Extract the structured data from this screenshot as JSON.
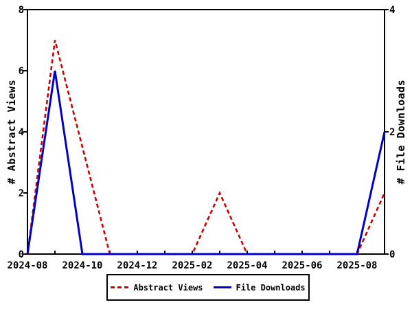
{
  "chart": {
    "left_axis": {
      "title": "# Abstract Views",
      "ticks": [
        0,
        2,
        4,
        6,
        8
      ],
      "min": 0,
      "max": 8
    },
    "right_axis": {
      "title": "# File Downloads",
      "ticks": [
        0,
        2,
        4
      ],
      "min": 0,
      "max": 4
    },
    "x_axis": {
      "labeled_ticks": [
        "2024-08",
        "2024-10",
        "2024-12",
        "2025-02",
        "2025-04",
        "2025-06",
        "2025-08"
      ],
      "minor_tick_interval": "1 month"
    },
    "legend": {
      "items": [
        {
          "label": "Abstract Views",
          "color": "#cc0000",
          "line_style": "dashed"
        },
        {
          "label": "File Downloads",
          "color": "#0000cc",
          "line_style": "solid"
        }
      ]
    }
  },
  "chart_data": {
    "type": "line",
    "x": [
      "2024-08",
      "2024-09",
      "2024-10",
      "2024-11",
      "2024-12",
      "2025-01",
      "2025-02",
      "2025-03",
      "2025-04",
      "2025-05",
      "2025-06",
      "2025-07",
      "2025-08",
      "2025-09"
    ],
    "series": [
      {
        "name": "Abstract Views",
        "axis": "left",
        "color": "#cc0000",
        "style": "dashed",
        "values": [
          0,
          7,
          3.5,
          0,
          0,
          0,
          0,
          2,
          0,
          0,
          0,
          0,
          0,
          2
        ]
      },
      {
        "name": "File Downloads",
        "axis": "right",
        "color": "#0000cc",
        "style": "solid",
        "values": [
          0,
          3,
          0,
          0,
          0,
          0,
          0,
          0,
          0,
          0,
          0,
          0,
          0,
          2
        ]
      }
    ],
    "title": "",
    "xlabel": "",
    "ylabel_left": "# Abstract Views",
    "ylabel_right": "# File Downloads",
    "left_ylim": [
      0,
      8
    ],
    "right_ylim": [
      0,
      4
    ],
    "grid": false,
    "legend_position": "bottom"
  }
}
